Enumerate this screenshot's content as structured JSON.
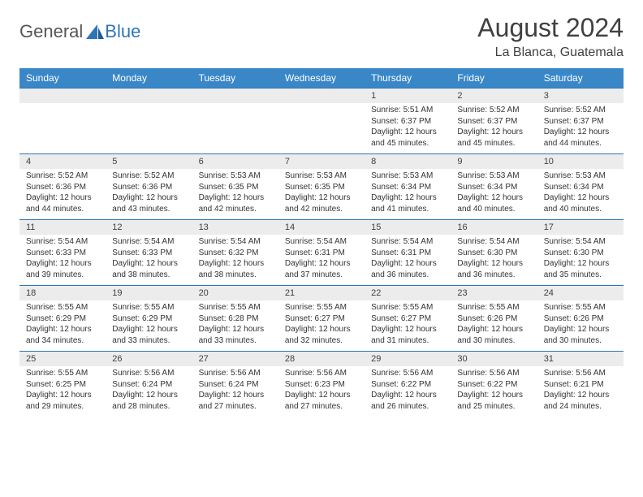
{
  "brand": {
    "word1": "General",
    "word2": "Blue",
    "word1_color": "#555555",
    "word2_color": "#2e75b6"
  },
  "title": {
    "month_year": "August 2024",
    "location": "La Blanca, Guatemala",
    "title_fontsize": 32,
    "location_fontsize": 16,
    "text_color": "#404040"
  },
  "calendar": {
    "header_bg": "#3a87c8",
    "header_fg": "#ffffff",
    "daynum_bg": "#ececec",
    "border_color": "#2e75b6",
    "cell_fontsize": 10,
    "daynum_fontsize": 11,
    "day_headers": [
      "Sunday",
      "Monday",
      "Tuesday",
      "Wednesday",
      "Thursday",
      "Friday",
      "Saturday"
    ],
    "weeks": [
      {
        "nums": [
          "",
          "",
          "",
          "",
          "1",
          "2",
          "3"
        ],
        "cells": [
          null,
          null,
          null,
          null,
          {
            "sunrise": "Sunrise: 5:51 AM",
            "sunset": "Sunset: 6:37 PM",
            "day1": "Daylight: 12 hours",
            "day2": "and 45 minutes."
          },
          {
            "sunrise": "Sunrise: 5:52 AM",
            "sunset": "Sunset: 6:37 PM",
            "day1": "Daylight: 12 hours",
            "day2": "and 45 minutes."
          },
          {
            "sunrise": "Sunrise: 5:52 AM",
            "sunset": "Sunset: 6:37 PM",
            "day1": "Daylight: 12 hours",
            "day2": "and 44 minutes."
          }
        ]
      },
      {
        "nums": [
          "4",
          "5",
          "6",
          "7",
          "8",
          "9",
          "10"
        ],
        "cells": [
          {
            "sunrise": "Sunrise: 5:52 AM",
            "sunset": "Sunset: 6:36 PM",
            "day1": "Daylight: 12 hours",
            "day2": "and 44 minutes."
          },
          {
            "sunrise": "Sunrise: 5:52 AM",
            "sunset": "Sunset: 6:36 PM",
            "day1": "Daylight: 12 hours",
            "day2": "and 43 minutes."
          },
          {
            "sunrise": "Sunrise: 5:53 AM",
            "sunset": "Sunset: 6:35 PM",
            "day1": "Daylight: 12 hours",
            "day2": "and 42 minutes."
          },
          {
            "sunrise": "Sunrise: 5:53 AM",
            "sunset": "Sunset: 6:35 PM",
            "day1": "Daylight: 12 hours",
            "day2": "and 42 minutes."
          },
          {
            "sunrise": "Sunrise: 5:53 AM",
            "sunset": "Sunset: 6:34 PM",
            "day1": "Daylight: 12 hours",
            "day2": "and 41 minutes."
          },
          {
            "sunrise": "Sunrise: 5:53 AM",
            "sunset": "Sunset: 6:34 PM",
            "day1": "Daylight: 12 hours",
            "day2": "and 40 minutes."
          },
          {
            "sunrise": "Sunrise: 5:53 AM",
            "sunset": "Sunset: 6:34 PM",
            "day1": "Daylight: 12 hours",
            "day2": "and 40 minutes."
          }
        ]
      },
      {
        "nums": [
          "11",
          "12",
          "13",
          "14",
          "15",
          "16",
          "17"
        ],
        "cells": [
          {
            "sunrise": "Sunrise: 5:54 AM",
            "sunset": "Sunset: 6:33 PM",
            "day1": "Daylight: 12 hours",
            "day2": "and 39 minutes."
          },
          {
            "sunrise": "Sunrise: 5:54 AM",
            "sunset": "Sunset: 6:33 PM",
            "day1": "Daylight: 12 hours",
            "day2": "and 38 minutes."
          },
          {
            "sunrise": "Sunrise: 5:54 AM",
            "sunset": "Sunset: 6:32 PM",
            "day1": "Daylight: 12 hours",
            "day2": "and 38 minutes."
          },
          {
            "sunrise": "Sunrise: 5:54 AM",
            "sunset": "Sunset: 6:31 PM",
            "day1": "Daylight: 12 hours",
            "day2": "and 37 minutes."
          },
          {
            "sunrise": "Sunrise: 5:54 AM",
            "sunset": "Sunset: 6:31 PM",
            "day1": "Daylight: 12 hours",
            "day2": "and 36 minutes."
          },
          {
            "sunrise": "Sunrise: 5:54 AM",
            "sunset": "Sunset: 6:30 PM",
            "day1": "Daylight: 12 hours",
            "day2": "and 36 minutes."
          },
          {
            "sunrise": "Sunrise: 5:54 AM",
            "sunset": "Sunset: 6:30 PM",
            "day1": "Daylight: 12 hours",
            "day2": "and 35 minutes."
          }
        ]
      },
      {
        "nums": [
          "18",
          "19",
          "20",
          "21",
          "22",
          "23",
          "24"
        ],
        "cells": [
          {
            "sunrise": "Sunrise: 5:55 AM",
            "sunset": "Sunset: 6:29 PM",
            "day1": "Daylight: 12 hours",
            "day2": "and 34 minutes."
          },
          {
            "sunrise": "Sunrise: 5:55 AM",
            "sunset": "Sunset: 6:29 PM",
            "day1": "Daylight: 12 hours",
            "day2": "and 33 minutes."
          },
          {
            "sunrise": "Sunrise: 5:55 AM",
            "sunset": "Sunset: 6:28 PM",
            "day1": "Daylight: 12 hours",
            "day2": "and 33 minutes."
          },
          {
            "sunrise": "Sunrise: 5:55 AM",
            "sunset": "Sunset: 6:27 PM",
            "day1": "Daylight: 12 hours",
            "day2": "and 32 minutes."
          },
          {
            "sunrise": "Sunrise: 5:55 AM",
            "sunset": "Sunset: 6:27 PM",
            "day1": "Daylight: 12 hours",
            "day2": "and 31 minutes."
          },
          {
            "sunrise": "Sunrise: 5:55 AM",
            "sunset": "Sunset: 6:26 PM",
            "day1": "Daylight: 12 hours",
            "day2": "and 30 minutes."
          },
          {
            "sunrise": "Sunrise: 5:55 AM",
            "sunset": "Sunset: 6:26 PM",
            "day1": "Daylight: 12 hours",
            "day2": "and 30 minutes."
          }
        ]
      },
      {
        "nums": [
          "25",
          "26",
          "27",
          "28",
          "29",
          "30",
          "31"
        ],
        "cells": [
          {
            "sunrise": "Sunrise: 5:55 AM",
            "sunset": "Sunset: 6:25 PM",
            "day1": "Daylight: 12 hours",
            "day2": "and 29 minutes."
          },
          {
            "sunrise": "Sunrise: 5:56 AM",
            "sunset": "Sunset: 6:24 PM",
            "day1": "Daylight: 12 hours",
            "day2": "and 28 minutes."
          },
          {
            "sunrise": "Sunrise: 5:56 AM",
            "sunset": "Sunset: 6:24 PM",
            "day1": "Daylight: 12 hours",
            "day2": "and 27 minutes."
          },
          {
            "sunrise": "Sunrise: 5:56 AM",
            "sunset": "Sunset: 6:23 PM",
            "day1": "Daylight: 12 hours",
            "day2": "and 27 minutes."
          },
          {
            "sunrise": "Sunrise: 5:56 AM",
            "sunset": "Sunset: 6:22 PM",
            "day1": "Daylight: 12 hours",
            "day2": "and 26 minutes."
          },
          {
            "sunrise": "Sunrise: 5:56 AM",
            "sunset": "Sunset: 6:22 PM",
            "day1": "Daylight: 12 hours",
            "day2": "and 25 minutes."
          },
          {
            "sunrise": "Sunrise: 5:56 AM",
            "sunset": "Sunset: 6:21 PM",
            "day1": "Daylight: 12 hours",
            "day2": "and 24 minutes."
          }
        ]
      }
    ]
  }
}
